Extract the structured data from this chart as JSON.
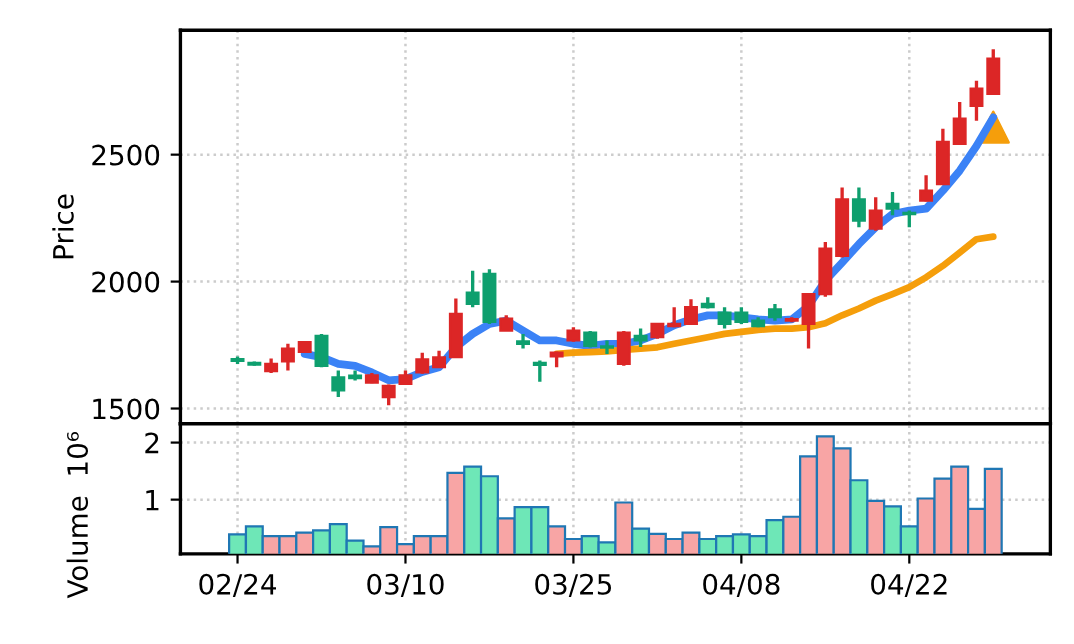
{
  "chart_data": [
    {
      "type": "candlestick",
      "ylabel": "Price",
      "tick_labels": "y",
      "grid": true,
      "categories": [
        null,
        null,
        null,
        null,
        null,
        null,
        null,
        null,
        null,
        null,
        null,
        null,
        null,
        null,
        null,
        null,
        null,
        null,
        null,
        null,
        null,
        null,
        null,
        null,
        null,
        null,
        null,
        null,
        null,
        null,
        null,
        null,
        null,
        null,
        null,
        null,
        null,
        null,
        null,
        null,
        null,
        null,
        null,
        null,
        null,
        null
      ],
      "ohlc": [
        [
          1695,
          1705,
          1675,
          1688
        ],
        [
          1680,
          1685,
          1668,
          1673
        ],
        [
          1647,
          1697,
          1640,
          1676
        ],
        [
          1686,
          1755,
          1650,
          1736
        ],
        [
          1723,
          1765,
          1720,
          1762
        ],
        [
          1786,
          1794,
          1663,
          1668
        ],
        [
          1623,
          1650,
          1545,
          1571
        ],
        [
          1630,
          1650,
          1610,
          1620
        ],
        [
          1602,
          1640,
          1600,
          1631
        ],
        [
          1545,
          1595,
          1513,
          1589
        ],
        [
          1597,
          1650,
          1595,
          1631
        ],
        [
          1642,
          1720,
          1637,
          1694
        ],
        [
          1663,
          1728,
          1660,
          1702
        ],
        [
          1702,
          1933,
          1700,
          1873
        ],
        [
          1957,
          2043,
          1899,
          1912
        ],
        [
          2030,
          2049,
          1833,
          1841
        ],
        [
          1807,
          1867,
          1805,
          1854
        ],
        [
          1765,
          1794,
          1736,
          1755
        ],
        [
          1680,
          1689,
          1605,
          1672
        ],
        [
          1705,
          1725,
          1663,
          1720
        ],
        [
          1768,
          1820,
          1763,
          1807
        ],
        [
          1799,
          1805,
          1740,
          1747
        ],
        [
          1745,
          1768,
          1715,
          1740
        ],
        [
          1676,
          1805,
          1668,
          1799
        ],
        [
          1786,
          1815,
          1742,
          1768
        ],
        [
          1781,
          1836,
          1775,
          1833
        ],
        [
          1825,
          1899,
          1820,
          1833
        ],
        [
          1833,
          1930,
          1830,
          1899
        ],
        [
          1912,
          1938,
          1894,
          1899
        ],
        [
          1878,
          1899,
          1815,
          1833
        ],
        [
          1878,
          1899,
          1833,
          1841
        ],
        [
          1846,
          1860,
          1820,
          1825
        ],
        [
          1891,
          1912,
          1846,
          1860
        ],
        [
          1846,
          1860,
          1840,
          1852
        ],
        [
          1833,
          1955,
          1736,
          1951
        ],
        [
          1951,
          2156,
          1940,
          2130
        ],
        [
          2101,
          2371,
          2095,
          2324
        ],
        [
          2324,
          2371,
          2214,
          2240
        ],
        [
          2209,
          2332,
          2200,
          2280
        ],
        [
          2306,
          2353,
          2261,
          2287
        ],
        [
          2271,
          2280,
          2214,
          2266
        ],
        [
          2319,
          2419,
          2315,
          2358
        ],
        [
          2384,
          2602,
          2380,
          2550
        ],
        [
          2542,
          2707,
          2540,
          2642
        ],
        [
          2692,
          2791,
          2634,
          2760
        ],
        [
          2739,
          2915,
          2735,
          2878
        ]
      ],
      "colors": [
        "#0e9f6e",
        "#0e9f6e",
        "#dc2626",
        "#dc2626",
        "#dc2626",
        "#0e9f6e",
        "#0e9f6e",
        "#0e9f6e",
        "#dc2626",
        "#dc2626",
        "#dc2626",
        "#dc2626",
        "#dc2626",
        "#dc2626",
        "#0e9f6e",
        "#0e9f6e",
        "#dc2626",
        "#0e9f6e",
        "#0e9f6e",
        "#dc2626",
        "#dc2626",
        "#0e9f6e",
        "#0e9f6e",
        "#dc2626",
        "#0e9f6e",
        "#dc2626",
        "#dc2626",
        "#dc2626",
        "#0e9f6e",
        "#0e9f6e",
        "#0e9f6e",
        "#0e9f6e",
        "#0e9f6e",
        "#dc2626",
        "#dc2626",
        "#dc2626",
        "#dc2626",
        "#0e9f6e",
        "#dc2626",
        "#0e9f6e",
        "#0e9f6e",
        "#dc2626",
        "#dc2626",
        "#dc2626",
        "#dc2626",
        "#dc2626"
      ],
      "series": [
        {
          "type": "line",
          "color": "#3b82f6",
          "values": [
            null,
            null,
            null,
            null,
            1715,
            1702,
            1676,
            1668,
            1642,
            1611,
            1616,
            1644,
            1663,
            1741,
            1794,
            1833,
            1846,
            1807,
            1768,
            1768,
            1755,
            1747,
            1755,
            1755,
            1768,
            1794,
            1828,
            1851,
            1867,
            1867,
            1859,
            1851,
            1846,
            1851,
            1904,
            2004,
            2075,
            2148,
            2214,
            2266,
            2280,
            2287,
            2358,
            2437,
            2534,
            2647
          ]
        },
        {
          "type": "line",
          "color": "#f59e0b",
          "values": [
            null,
            null,
            null,
            null,
            null,
            null,
            null,
            null,
            null,
            null,
            null,
            null,
            null,
            null,
            null,
            null,
            null,
            null,
            null,
            1715,
            1720,
            1722,
            1725,
            1731,
            1736,
            1741,
            1755,
            1768,
            1781,
            1794,
            1802,
            1810,
            1815,
            1815,
            1820,
            1836,
            1867,
            1894,
            1925,
            1951,
            1978,
            2017,
            2062,
            2114,
            2167,
            2177
          ]
        },
        {
          "type": "scatter",
          "marker": "triangle",
          "color": "#f59e0b",
          "values": [
            null,
            null,
            null,
            null,
            null,
            null,
            null,
            null,
            null,
            null,
            null,
            null,
            null,
            null,
            null,
            null,
            null,
            null,
            null,
            null,
            null,
            null,
            null,
            null,
            null,
            null,
            null,
            null,
            null,
            null,
            null,
            null,
            null,
            null,
            null,
            null,
            null,
            null,
            null,
            null,
            null,
            null,
            null,
            null,
            null,
            2608
          ]
        }
      ],
      "ylim": [
        1440,
        2990
      ],
      "yticks": [
        1500,
        2000,
        2500
      ]
    },
    {
      "type": "bar",
      "ylabel": "Volume  10⁶",
      "grid": true,
      "categories": [
        "02/24",
        null,
        null,
        null,
        null,
        null,
        null,
        null,
        null,
        null,
        "03/10",
        null,
        null,
        null,
        null,
        null,
        null,
        null,
        null,
        null,
        "03/25",
        null,
        null,
        null,
        null,
        null,
        null,
        null,
        null,
        null,
        "04/08",
        null,
        null,
        null,
        null,
        null,
        null,
        null,
        null,
        null,
        "04/22",
        null,
        null,
        null,
        null,
        null
      ],
      "values": [
        0.39,
        0.53,
        0.36,
        0.36,
        0.42,
        0.46,
        0.57,
        0.28,
        0.18,
        0.52,
        0.22,
        0.36,
        0.36,
        1.47,
        1.58,
        1.41,
        0.67,
        0.87,
        0.87,
        0.53,
        0.31,
        0.36,
        0.25,
        0.95,
        0.49,
        0.4,
        0.31,
        0.42,
        0.31,
        0.36,
        0.39,
        0.36,
        0.64,
        0.7,
        1.76,
        2.11,
        1.9,
        1.34,
        0.98,
        0.88,
        0.53,
        1.02,
        1.37,
        1.58,
        0.84,
        1.54
      ],
      "colors": [
        "#6ee7b7",
        "#6ee7b7",
        "#f8a5a5",
        "#f8a5a5",
        "#f8a5a5",
        "#6ee7b7",
        "#6ee7b7",
        "#6ee7b7",
        "#f8a5a5",
        "#f8a5a5",
        "#f8a5a5",
        "#f8a5a5",
        "#f8a5a5",
        "#f8a5a5",
        "#6ee7b7",
        "#6ee7b7",
        "#f8a5a5",
        "#6ee7b7",
        "#6ee7b7",
        "#f8a5a5",
        "#f8a5a5",
        "#6ee7b7",
        "#6ee7b7",
        "#f8a5a5",
        "#6ee7b7",
        "#f8a5a5",
        "#f8a5a5",
        "#f8a5a5",
        "#6ee7b7",
        "#6ee7b7",
        "#6ee7b7",
        "#6ee7b7",
        "#6ee7b7",
        "#f8a5a5",
        "#f8a5a5",
        "#f8a5a5",
        "#f8a5a5",
        "#6ee7b7",
        "#f8a5a5",
        "#6ee7b7",
        "#6ee7b7",
        "#f8a5a5",
        "#f8a5a5",
        "#f8a5a5",
        "#f8a5a5",
        "#f8a5a5"
      ],
      "ylim": [
        0.05,
        2.33
      ],
      "yticks": [
        1,
        2
      ]
    }
  ]
}
